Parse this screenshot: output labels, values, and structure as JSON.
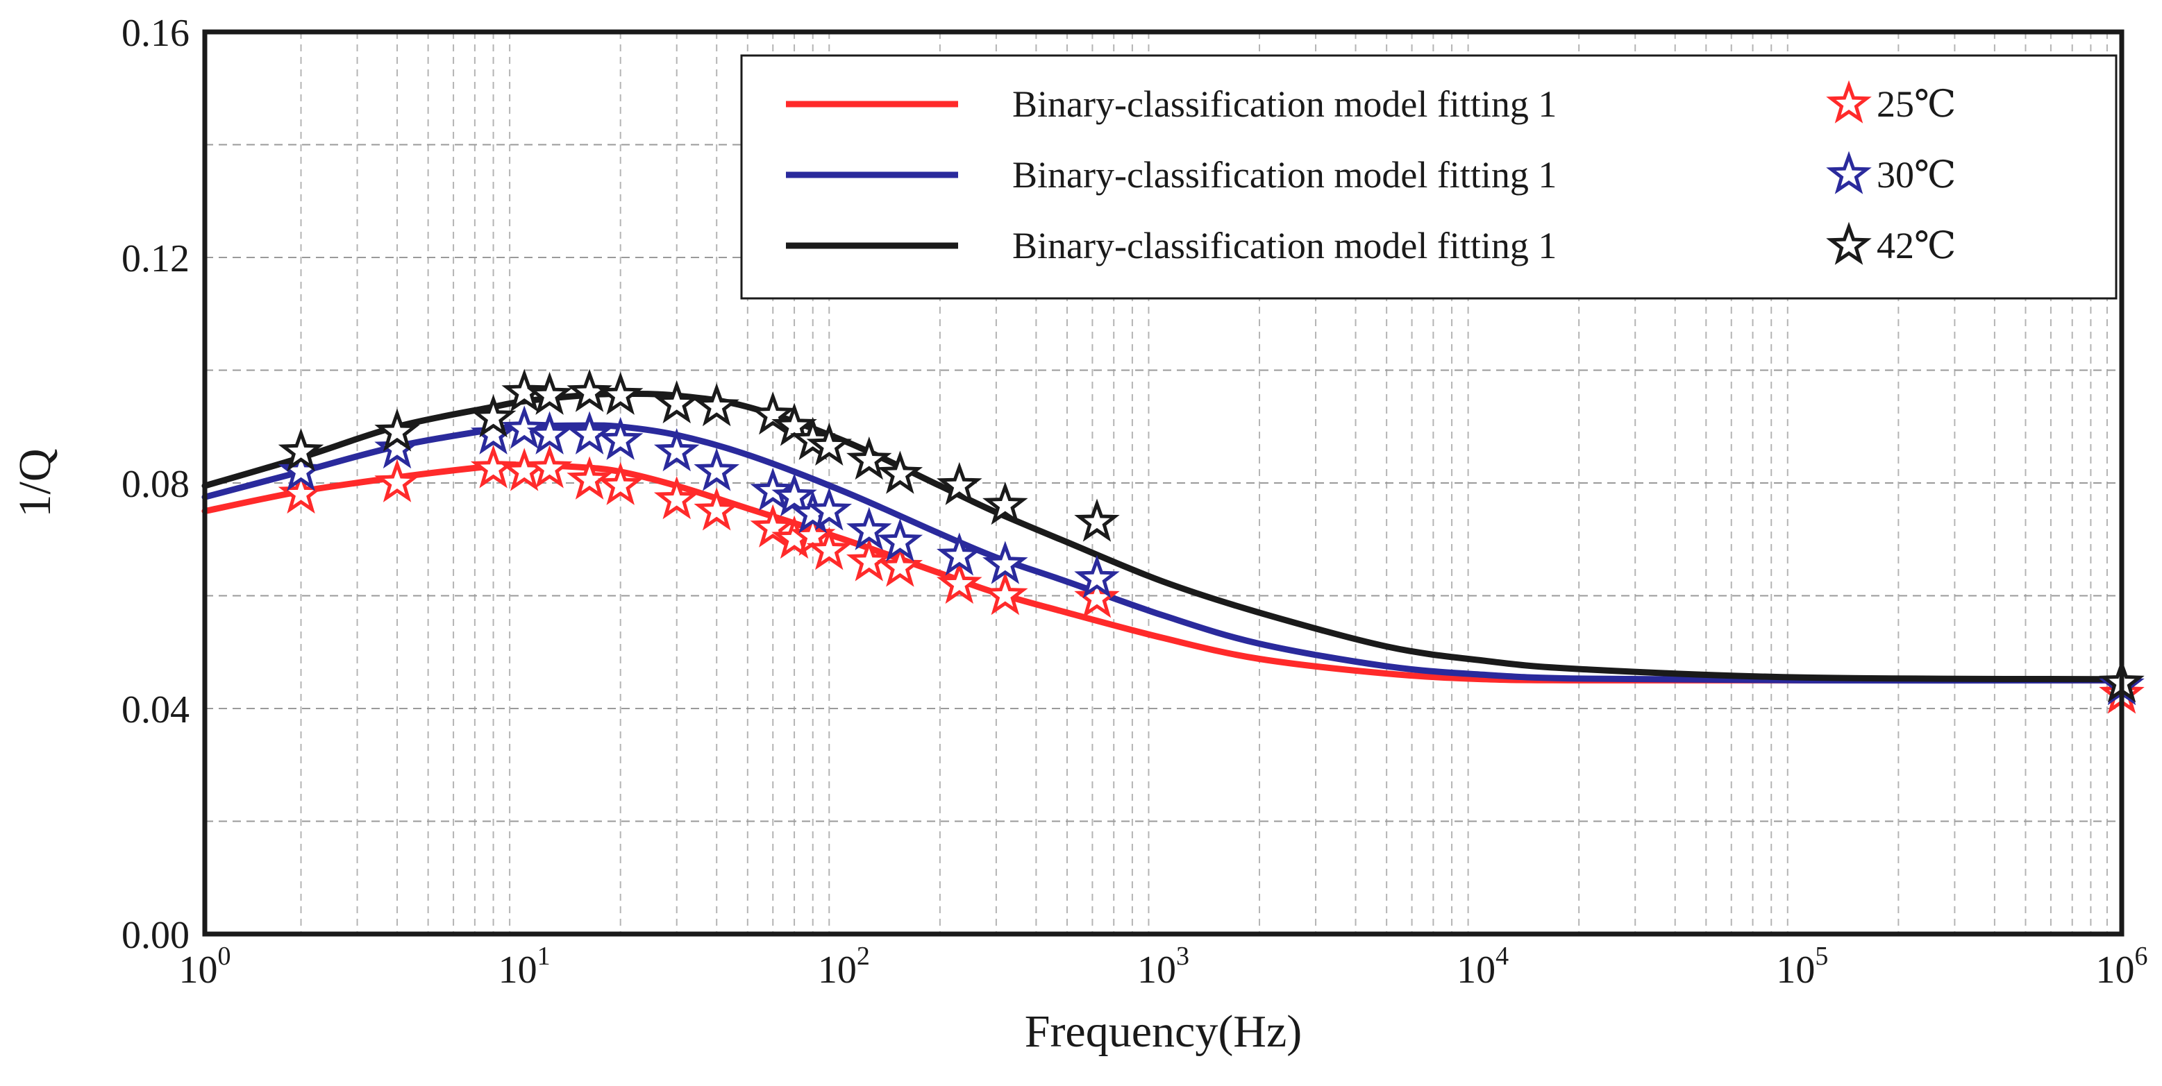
{
  "chart_data": {
    "type": "line",
    "title": "",
    "xlabel": "Frequency(Hz)",
    "ylabel": "1/Q",
    "xscale": "log",
    "xlim": [
      1,
      1000000
    ],
    "ylim": [
      0,
      0.16
    ],
    "x_ticks": [
      {
        "base": "10",
        "exp": "0",
        "value": 1
      },
      {
        "base": "10",
        "exp": "1",
        "value": 10
      },
      {
        "base": "10",
        "exp": "2",
        "value": 100
      },
      {
        "base": "10",
        "exp": "3",
        "value": 1000
      },
      {
        "base": "10",
        "exp": "4",
        "value": 10000
      },
      {
        "base": "10",
        "exp": "5",
        "value": 100000
      },
      {
        "base": "10",
        "exp": "6",
        "value": 1000000
      }
    ],
    "y_ticks": [
      "0.00",
      "0.04",
      "0.08",
      "0.12",
      "0.16"
    ],
    "y_minor": [
      0.02,
      0.06,
      0.1,
      0.14
    ],
    "grid": true,
    "legend_position": "top-right",
    "fit_series": [
      {
        "name": "Binary-classification model fitting 1",
        "color": "#ff2a2a",
        "x": [
          1,
          2,
          4,
          8,
          10,
          15,
          20,
          30,
          50,
          100,
          200,
          300,
          500,
          1000,
          2000,
          5000,
          10000,
          20000,
          100000,
          1000000
        ],
        "y": [
          0.075,
          0.0785,
          0.081,
          0.083,
          0.0832,
          0.0828,
          0.082,
          0.0795,
          0.0755,
          0.07,
          0.064,
          0.0605,
          0.057,
          0.0525,
          0.0488,
          0.0462,
          0.0452,
          0.045,
          0.045,
          0.045
        ]
      },
      {
        "name": "Binary-classification model fitting 1",
        "color": "#2a2a9c",
        "x": [
          1,
          2,
          4,
          8,
          10,
          15,
          20,
          30,
          50,
          100,
          200,
          300,
          500,
          1000,
          2000,
          5000,
          10000,
          20000,
          100000,
          1000000
        ],
        "y": [
          0.0775,
          0.082,
          0.0865,
          0.0895,
          0.09,
          0.0902,
          0.09,
          0.0885,
          0.085,
          0.0785,
          0.071,
          0.0668,
          0.0625,
          0.0565,
          0.0515,
          0.0475,
          0.046,
          0.0453,
          0.045,
          0.045
        ]
      },
      {
        "name": "Binary-classification model fitting 1",
        "color": "#1a1a1a",
        "x": [
          1,
          2,
          4,
          8,
          10,
          15,
          20,
          30,
          50,
          100,
          200,
          300,
          500,
          1000,
          2000,
          5000,
          10000,
          20000,
          100000,
          1000000
        ],
        "y": [
          0.0795,
          0.0845,
          0.09,
          0.0935,
          0.0945,
          0.0955,
          0.0958,
          0.0955,
          0.0935,
          0.0875,
          0.0795,
          0.0748,
          0.0695,
          0.0625,
          0.057,
          0.051,
          0.0485,
          0.047,
          0.0455,
          0.0452
        ]
      }
    ],
    "marker_series": [
      {
        "name": "25℃",
        "color": "#ff2a2a",
        "x": [
          2,
          4,
          8,
          10,
          12,
          16,
          20,
          30,
          40,
          60,
          70,
          80,
          90,
          120,
          150,
          230,
          320,
          620,
          1000000
        ],
        "y": [
          0.078,
          0.08,
          0.0825,
          0.082,
          0.0825,
          0.0805,
          0.0795,
          0.077,
          0.075,
          0.072,
          0.07,
          0.0705,
          0.068,
          0.066,
          0.065,
          0.062,
          0.06,
          0.0595,
          0.0425
        ]
      },
      {
        "name": "30℃",
        "color": "#2a2a9c",
        "x": [
          2,
          4,
          8,
          10,
          12,
          16,
          20,
          30,
          40,
          60,
          70,
          80,
          90,
          120,
          150,
          230,
          320,
          620,
          1000000
        ],
        "y": [
          0.082,
          0.086,
          0.0885,
          0.0895,
          0.0885,
          0.0885,
          0.0875,
          0.0855,
          0.082,
          0.0785,
          0.0775,
          0.0745,
          0.075,
          0.0715,
          0.0695,
          0.067,
          0.0655,
          0.063,
          0.044
        ]
      },
      {
        "name": "42℃",
        "color": "#1a1a1a",
        "x": [
          2,
          4,
          8,
          10,
          12,
          16,
          20,
          30,
          40,
          60,
          70,
          80,
          90,
          120,
          150,
          230,
          320,
          620,
          1000000
        ],
        "y": [
          0.0855,
          0.089,
          0.0915,
          0.096,
          0.0955,
          0.096,
          0.0955,
          0.094,
          0.0935,
          0.092,
          0.09,
          0.0875,
          0.0865,
          0.084,
          0.0815,
          0.0795,
          0.076,
          0.073,
          0.0445
        ]
      }
    ]
  }
}
